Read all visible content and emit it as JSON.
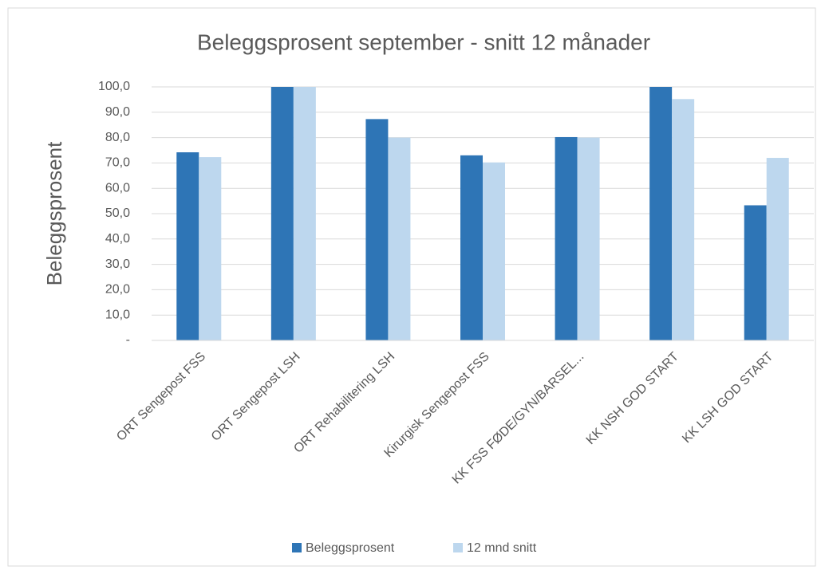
{
  "chart_data": {
    "type": "bar",
    "title": "Beleggsprosent september  -  snitt 12 månader",
    "y_label": "Beleggsprosent",
    "categories": [
      "ORT Sengepost FSS",
      "ORT Sengepost LSH",
      "ORT Rehabilitering LSH",
      "Kirurgisk Sengepost FSS",
      "KK FSS FØDE/GYN/BARSEL...",
      "KK NSH GOD START",
      "KK LSH GOD START"
    ],
    "series": [
      {
        "name": "Beleggsprosent",
        "color": "#2e75b6",
        "values": [
          74.2,
          100,
          87.3,
          73,
          80.2,
          100,
          53.3
        ]
      },
      {
        "name": "12 mnd snitt",
        "color": "#bdd7ee",
        "values": [
          72.3,
          100,
          80,
          70.2,
          80,
          95.2,
          72
        ]
      }
    ],
    "ylim": [
      0,
      100
    ],
    "yticks": [
      {
        "value": 0,
        "label": "-"
      },
      {
        "value": 10,
        "label": "10,0"
      },
      {
        "value": 20,
        "label": "20,0"
      },
      {
        "value": 30,
        "label": "30,0"
      },
      {
        "value": 40,
        "label": "40,0"
      },
      {
        "value": 50,
        "label": "50,0"
      },
      {
        "value": 60,
        "label": "60,0"
      },
      {
        "value": 70,
        "label": "70,0"
      },
      {
        "value": 80,
        "label": "80,0"
      },
      {
        "value": 90,
        "label": "90,0"
      },
      {
        "value": 100,
        "label": "100,0"
      }
    ],
    "legend": "bottom"
  }
}
